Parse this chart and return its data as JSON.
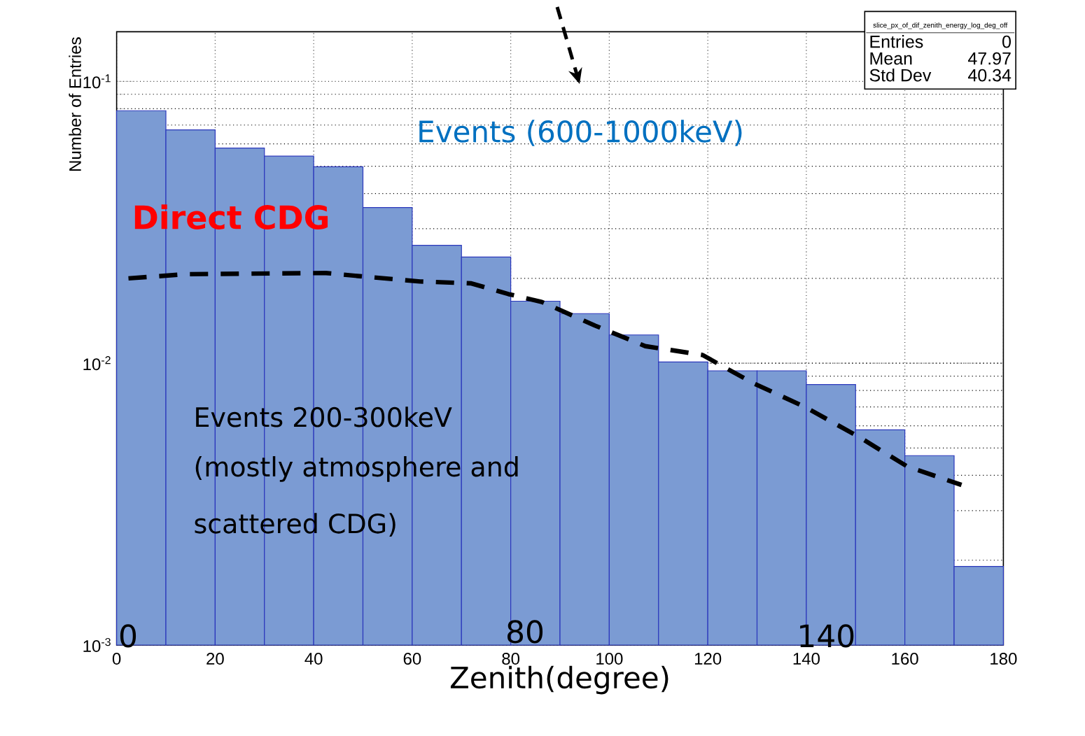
{
  "chart_data": {
    "type": "histogram",
    "xlabel": "Zenith(degree)",
    "ylabel": "Number of Entries",
    "bins": [
      0,
      10,
      20,
      30,
      40,
      50,
      60,
      70,
      80,
      90,
      100,
      110,
      120,
      130,
      140,
      150,
      160,
      170,
      180
    ],
    "values": [
      0.0787,
      0.0673,
      0.058,
      0.0543,
      0.0498,
      0.0357,
      0.0262,
      0.0238,
      0.0166,
      0.015,
      0.0126,
      0.0101,
      0.0094,
      0.0094,
      0.0084,
      0.0058,
      0.0047,
      0.0019
    ],
    "color": "#7b9bd3",
    "series": [
      {
        "type": "line",
        "color": "#000000",
        "line_style": "dashed",
        "x": [
          2.4,
          14.1,
          42.5,
          50.2,
          61.6,
          72.0,
          79.5,
          86.3,
          97.1,
          107.3,
          118.9,
          129.2,
          139.7,
          150.5,
          160.5,
          171.5
        ],
        "values": [
          0.02,
          0.0207,
          0.0209,
          0.0203,
          0.0195,
          0.0192,
          0.0176,
          0.0165,
          0.0136,
          0.0115,
          0.0107,
          0.0085,
          0.007,
          0.0055,
          0.0043,
          0.0037
        ]
      }
    ],
    "log": "y",
    "grid": true,
    "xlim": [
      0,
      180
    ],
    "xticks": [
      0,
      20,
      40,
      60,
      80,
      100,
      120,
      140,
      160,
      180
    ],
    "ylim": [
      0.001,
      0.15
    ],
    "yticks": [
      {
        "value": 0.001,
        "label": "10$^{-3}$"
      },
      {
        "value": 0.01,
        "label": "10$^{-2}$"
      },
      {
        "value": 0.1,
        "label": "10$^{-1}$"
      }
    ],
    "annotations": [
      "Events (600-1000keV)",
      "Direct CDG",
      "Events  200-300keV",
      "(mostly atmosphere and",
      "scattered CDG)",
      {
        "text": "0",
        "x": 0,
        "y": 0.001
      },
      {
        "text": "80",
        "x": 80,
        "y": 0.001
      },
      {
        "text": "140",
        "x": 140,
        "y": 0.001
      },
      "slice_px_of_dif_zenith_energy_log_deg_off",
      "Entries",
      "0",
      "Mean",
      "47.97",
      "Std Dev",
      "40.34"
    ]
  }
}
